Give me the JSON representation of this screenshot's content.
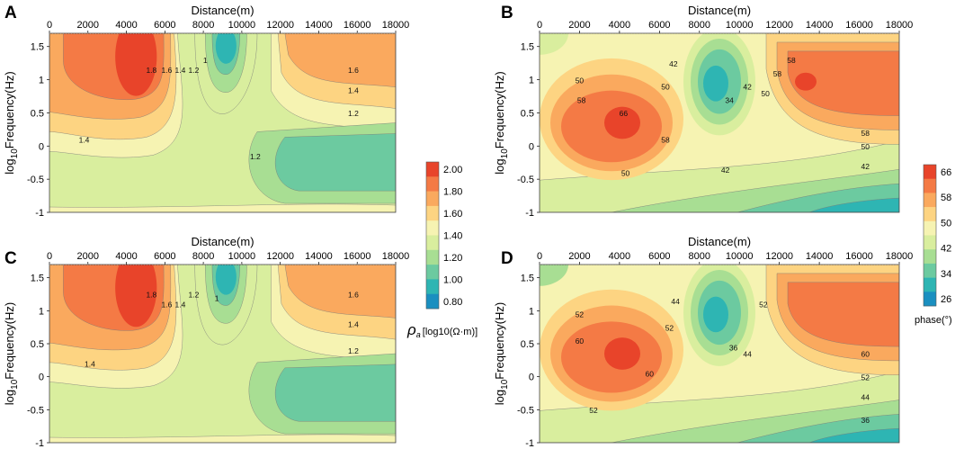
{
  "figure": {
    "x_label": "Distance(m)",
    "y_label_prefix": "log",
    "y_label_sub": "10",
    "y_label_suffix": "Frequency(Hz)",
    "x_ticks": [
      "0",
      "2000",
      "4000",
      "6000",
      "8000",
      "10000",
      "12000",
      "14000",
      "16000",
      "18000"
    ],
    "y_ticks": [
      "1.5",
      "1",
      "0.5",
      "0",
      "-0.5",
      "-1"
    ]
  },
  "colorbar_rho": {
    "ticks": [
      "2.00",
      "1.80",
      "1.60",
      "1.40",
      "1.20",
      "1.00",
      "0.80"
    ],
    "label_symbol": "ρ",
    "label_sub": "a",
    "label_unit": "[log10(Ω·m)]",
    "colors": [
      "#e8442a",
      "#f47a45",
      "#faa95e",
      "#fdd482",
      "#f6f3b2",
      "#d9ee9e",
      "#a8de93",
      "#6ccaa0",
      "#2eb5b3",
      "#1a8fc0"
    ]
  },
  "colorbar_phase": {
    "ticks": [
      "66",
      "58",
      "50",
      "42",
      "34",
      "26"
    ],
    "label": "phase(°)",
    "colors": [
      "#e8442a",
      "#f47a45",
      "#faa95e",
      "#fdd482",
      "#f6f3b2",
      "#d9ee9e",
      "#a8de93",
      "#6ccaa0",
      "#2eb5b3",
      "#1a8fc0"
    ]
  },
  "chart_data": [
    {
      "panel": "A",
      "type": "heatmap",
      "quantity": "apparent resistivity log10(Ω·m)",
      "xlabel": "Distance(m)",
      "ylabel": "log10Frequency(Hz)",
      "xlim": [
        0,
        18000
      ],
      "ylim": [
        -1,
        1.7
      ],
      "contour_labels": [
        {
          "text": "1.8",
          "x": 5300,
          "y": 1.1
        },
        {
          "text": "1.6",
          "x": 6100,
          "y": 1.1
        },
        {
          "text": "1.4",
          "x": 6800,
          "y": 1.1
        },
        {
          "text": "1.2",
          "x": 7500,
          "y": 1.1
        },
        {
          "text": "1",
          "x": 8100,
          "y": 1.25
        },
        {
          "text": "1.6",
          "x": 15800,
          "y": 1.1
        },
        {
          "text": "1.4",
          "x": 15800,
          "y": 0.8
        },
        {
          "text": "1.2",
          "x": 15800,
          "y": 0.45
        },
        {
          "text": "1.4",
          "x": 1800,
          "y": 0.05
        },
        {
          "text": "1.2",
          "x": 10700,
          "y": -0.2
        }
      ]
    },
    {
      "panel": "B",
      "type": "heatmap",
      "quantity": "phase (°)",
      "xlabel": "Distance(m)",
      "ylabel": "log10Frequency(Hz)",
      "xlim": [
        0,
        18000
      ],
      "ylim": [
        -1,
        1.7
      ],
      "contour_labels": [
        {
          "text": "42",
          "x": 6700,
          "y": 1.2
        },
        {
          "text": "50",
          "x": 2000,
          "y": 0.95
        },
        {
          "text": "50",
          "x": 6300,
          "y": 0.85
        },
        {
          "text": "58",
          "x": 2100,
          "y": 0.65
        },
        {
          "text": "66",
          "x": 4200,
          "y": 0.45
        },
        {
          "text": "58",
          "x": 6300,
          "y": 0.05
        },
        {
          "text": "34",
          "x": 9500,
          "y": 0.65
        },
        {
          "text": "42",
          "x": 10400,
          "y": 0.85
        },
        {
          "text": "50",
          "x": 11300,
          "y": 0.75
        },
        {
          "text": "58",
          "x": 11900,
          "y": 1.05
        },
        {
          "text": "58",
          "x": 12600,
          "y": 1.25
        },
        {
          "text": "58",
          "x": 16300,
          "y": 0.15
        },
        {
          "text": "50",
          "x": 16300,
          "y": -0.05
        },
        {
          "text": "42",
          "x": 16300,
          "y": -0.35
        },
        {
          "text": "50",
          "x": 4300,
          "y": -0.45
        },
        {
          "text": "42",
          "x": 9300,
          "y": -0.4
        }
      ]
    },
    {
      "panel": "C",
      "type": "heatmap",
      "quantity": "apparent resistivity log10(Ω·m)",
      "xlabel": "Distance(m)",
      "ylabel": "log10Frequency(Hz)",
      "xlim": [
        0,
        18000
      ],
      "ylim": [
        -1,
        1.7
      ],
      "contour_labels": [
        {
          "text": "1.8",
          "x": 5300,
          "y": 1.2
        },
        {
          "text": "1.6",
          "x": 6100,
          "y": 1.05
        },
        {
          "text": "1.4",
          "x": 6800,
          "y": 1.05
        },
        {
          "text": "1.2",
          "x": 7500,
          "y": 1.2
        },
        {
          "text": "1",
          "x": 8700,
          "y": 1.15
        },
        {
          "text": "1.6",
          "x": 15800,
          "y": 1.2
        },
        {
          "text": "1.4",
          "x": 15800,
          "y": 0.75
        },
        {
          "text": "1.2",
          "x": 15800,
          "y": 0.35
        },
        {
          "text": "1.4",
          "x": 2100,
          "y": 0.15
        }
      ]
    },
    {
      "panel": "D",
      "type": "heatmap",
      "quantity": "phase (°)",
      "xlabel": "Distance(m)",
      "ylabel": "log10Frequency(Hz)",
      "xlim": [
        0,
        18000
      ],
      "ylim": [
        -1,
        1.7
      ],
      "contour_labels": [
        {
          "text": "52",
          "x": 2000,
          "y": 0.9
        },
        {
          "text": "60",
          "x": 2000,
          "y": 0.5
        },
        {
          "text": "44",
          "x": 6800,
          "y": 1.1
        },
        {
          "text": "52",
          "x": 6500,
          "y": 0.7
        },
        {
          "text": "60",
          "x": 5500,
          "y": 0.0
        },
        {
          "text": "52",
          "x": 2700,
          "y": -0.55
        },
        {
          "text": "36",
          "x": 9700,
          "y": 0.4
        },
        {
          "text": "52",
          "x": 11200,
          "y": 1.05
        },
        {
          "text": "44",
          "x": 10400,
          "y": 0.3
        },
        {
          "text": "60",
          "x": 16300,
          "y": 0.3
        },
        {
          "text": "52",
          "x": 16300,
          "y": -0.05
        },
        {
          "text": "44",
          "x": 16300,
          "y": -0.35
        },
        {
          "text": "36",
          "x": 16300,
          "y": -0.7
        }
      ]
    }
  ]
}
